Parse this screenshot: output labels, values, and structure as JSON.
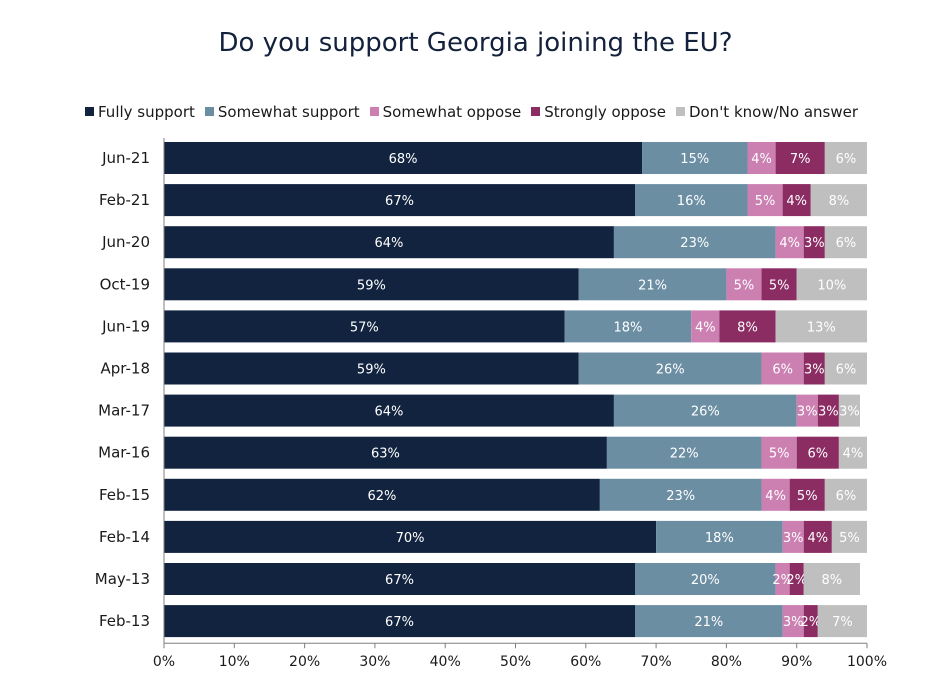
{
  "title": "Do you support Georgia joining the EU?",
  "chart_data": {
    "type": "bar",
    "orientation": "horizontal",
    "stacked": true,
    "title": "Do you support Georgia joining the EU?",
    "categories": [
      "Jun-21",
      "Feb-21",
      "Jun-20",
      "Oct-19",
      "Jun-19",
      "Apr-18",
      "Mar-17",
      "Mar-16",
      "Feb-15",
      "Feb-14",
      "May-13",
      "Feb-13"
    ],
    "series": [
      {
        "name": "Fully support",
        "color": "#12233f",
        "label_color": "#ffffff",
        "values": [
          68,
          67,
          64,
          59,
          57,
          59,
          64,
          63,
          62,
          70,
          67,
          67
        ]
      },
      {
        "name": "Somewhat support",
        "color": "#6b8ea3",
        "label_color": "#ffffff",
        "values": [
          15,
          16,
          23,
          21,
          18,
          26,
          26,
          22,
          23,
          18,
          20,
          21
        ]
      },
      {
        "name": "Somewhat oppose",
        "color": "#cc80b2",
        "label_color": "#ffffff",
        "values": [
          4,
          5,
          4,
          5,
          4,
          6,
          3,
          5,
          4,
          3,
          2,
          3
        ]
      },
      {
        "name": "Strongly oppose",
        "color": "#8b2c63",
        "label_color": "#ffffff",
        "values": [
          7,
          4,
          3,
          5,
          8,
          3,
          3,
          6,
          5,
          4,
          2,
          2
        ]
      },
      {
        "name": "Don't know/No answer",
        "color": "#bfbfbf",
        "label_color": "#ffffff",
        "values": [
          6,
          8,
          6,
          10,
          13,
          6,
          3,
          4,
          6,
          5,
          8,
          7
        ]
      }
    ],
    "xlim": [
      0,
      100
    ],
    "x_ticks": [
      "0%",
      "10%",
      "20%",
      "30%",
      "40%",
      "50%",
      "60%",
      "70%",
      "80%",
      "90%",
      "100%"
    ],
    "legend_position": "top",
    "grid": false
  }
}
